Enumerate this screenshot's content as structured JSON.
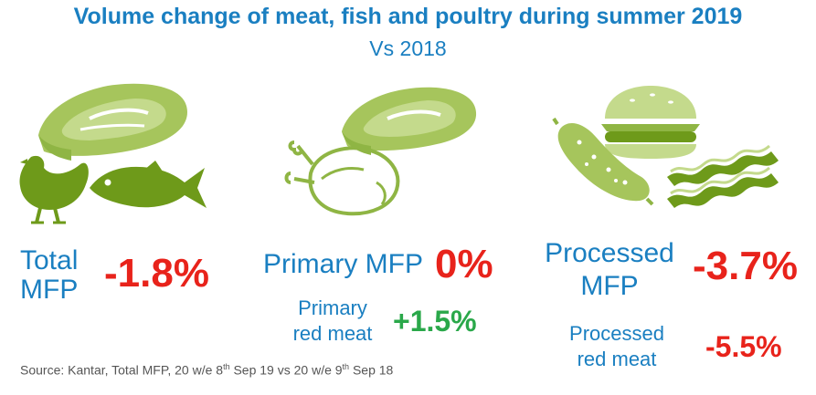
{
  "title": "Volume change of meat, fish and poultry during summer 2019",
  "subtitle": "Vs 2018",
  "colors": {
    "title": "#1a7fc1",
    "negative": "#e8231b",
    "positive": "#2aa84a",
    "icon_dark": "#6e9a1a",
    "icon_light": "#a6c55c"
  },
  "chart_data": {
    "type": "table",
    "title": "Volume change of meat, fish and poultry during summer 2019",
    "subtitle": "Vs 2018",
    "unit": "%",
    "rows": [
      {
        "label_line1": "Total",
        "label_line2": "MFP",
        "value": -1.8,
        "display": "-1.8%"
      },
      {
        "label_line1": "Primary MFP",
        "label_line2": "",
        "value": 0,
        "display": "0%",
        "sub": {
          "label_line1": "Primary",
          "label_line2": "red meat",
          "value": 1.5,
          "display": "+1.5%"
        }
      },
      {
        "label_line1": "Processed",
        "label_line2": "MFP",
        "value": -3.7,
        "display": "-3.7%",
        "sub": {
          "label_line1": "Processed",
          "label_line2": "red meat",
          "value": -5.5,
          "display": "-5.5%"
        }
      }
    ]
  },
  "source": {
    "text_a": "Source: Kantar, Total MFP, 20 w/e 8",
    "sup_a": "th",
    "text_b": " Sep 19 vs 20 w/e 9",
    "sup_b": "th",
    "text_c": " Sep 18"
  },
  "icons": [
    "steak-icon",
    "chicken-icon",
    "fish-icon",
    "roast-chicken-icon",
    "burger-icon",
    "sausage-icon",
    "bacon-icon"
  ]
}
